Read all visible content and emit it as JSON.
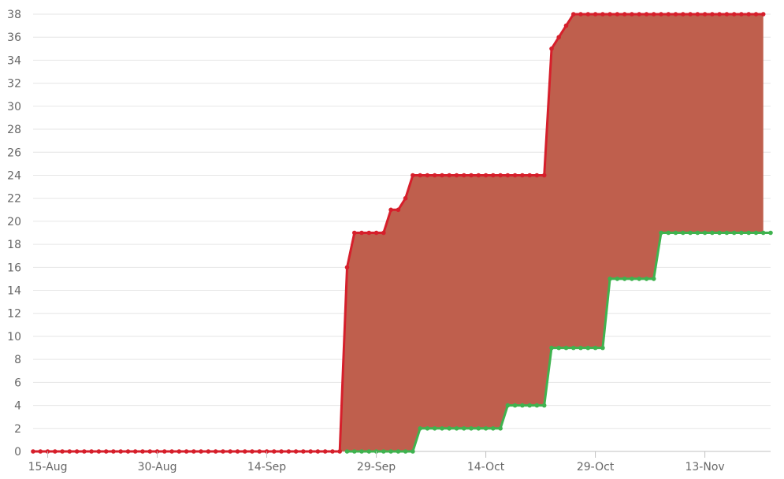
{
  "chart_data": {
    "type": "area",
    "title": "",
    "xlabel": "",
    "ylabel": "",
    "ylim": [
      0,
      38
    ],
    "yticks": [
      0,
      2,
      4,
      6,
      8,
      10,
      12,
      14,
      16,
      18,
      20,
      22,
      24,
      26,
      28,
      30,
      32,
      34,
      36,
      38
    ],
    "x_start": "2023-08-13",
    "x_end": "2023-11-22",
    "xtick_labels": [
      "15-Aug",
      "30-Aug",
      "14-Sep",
      "29-Sep",
      "14-Oct",
      "29-Oct",
      "13-Nov"
    ],
    "xtick_dates": [
      "2023-08-15",
      "2023-08-30",
      "2023-09-14",
      "2023-09-29",
      "2023-10-14",
      "2023-10-29",
      "2023-11-13"
    ],
    "grid": true,
    "area_fill": "#bf5f4d",
    "series": [
      {
        "color": "#d61f2b",
        "start": "2023-08-13",
        "values": [
          0,
          0,
          0,
          0,
          0,
          0,
          0,
          0,
          0,
          0,
          0,
          0,
          0,
          0,
          0,
          0,
          0,
          0,
          0,
          0,
          0,
          0,
          0,
          0,
          0,
          0,
          0,
          0,
          0,
          0,
          0,
          0,
          0,
          0,
          0,
          0,
          0,
          0,
          0,
          0,
          0,
          0,
          0,
          16,
          19,
          19,
          19,
          19,
          19,
          21,
          21,
          22,
          24,
          24,
          24,
          24,
          24,
          24,
          24,
          24,
          24,
          24,
          24,
          24,
          24,
          24,
          24,
          24,
          24,
          24,
          24,
          35,
          36,
          37,
          38,
          38,
          38,
          38,
          38,
          38,
          38,
          38,
          38,
          38,
          38,
          38,
          38,
          38,
          38,
          38,
          38,
          38,
          38,
          38,
          38,
          38,
          38,
          38,
          38,
          38,
          38
        ]
      },
      {
        "color": "#3fb34f",
        "start": "2023-09-25",
        "values": [
          0,
          0,
          0,
          0,
          0,
          0,
          0,
          0,
          0,
          0,
          2,
          2,
          2,
          2,
          2,
          2,
          2,
          2,
          2,
          2,
          2,
          2,
          4,
          4,
          4,
          4,
          4,
          4,
          9,
          9,
          9,
          9,
          9,
          9,
          9,
          9,
          15,
          15,
          15,
          15,
          15,
          15,
          15,
          19,
          19,
          19,
          19,
          19,
          19,
          19,
          19,
          19,
          19,
          19,
          19,
          19,
          19,
          19,
          19
        ]
      }
    ]
  }
}
